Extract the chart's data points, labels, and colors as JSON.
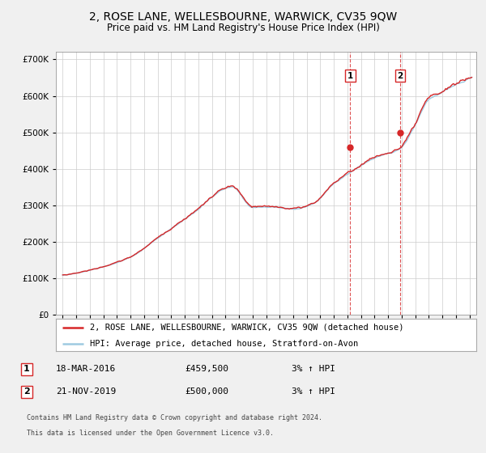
{
  "title": "2, ROSE LANE, WELLESBOURNE, WARWICK, CV35 9QW",
  "subtitle": "Price paid vs. HM Land Registry's House Price Index (HPI)",
  "ylim": [
    0,
    720000
  ],
  "yticks": [
    0,
    100000,
    200000,
    300000,
    400000,
    500000,
    600000,
    700000
  ],
  "sale1_date_num": 2016.21,
  "sale1_price": 459500,
  "sale1_label": "1",
  "sale1_text": "18-MAR-2016",
  "sale1_price_str": "£459,500",
  "sale1_hpi": "3% ↑ HPI",
  "sale2_date_num": 2019.89,
  "sale2_price": 500000,
  "sale2_label": "2",
  "sale2_text": "21-NOV-2019",
  "sale2_price_str": "£500,000",
  "sale2_hpi": "3% ↑ HPI",
  "legend_entry1": "2, ROSE LANE, WELLESBOURNE, WARWICK, CV35 9QW (detached house)",
  "legend_entry2": "HPI: Average price, detached house, Stratford-on-Avon",
  "footnote1": "Contains HM Land Registry data © Crown copyright and database right 2024.",
  "footnote2": "This data is licensed under the Open Government Licence v3.0.",
  "hpi_color": "#9ecae1",
  "price_color": "#d62728",
  "background_color": "#f0f0f0",
  "plot_bg_color": "#ffffff",
  "grid_color": "#cccccc",
  "title_fontsize": 10,
  "subtitle_fontsize": 8.5,
  "tick_fontsize": 7.5,
  "legend_fontsize": 7.5
}
